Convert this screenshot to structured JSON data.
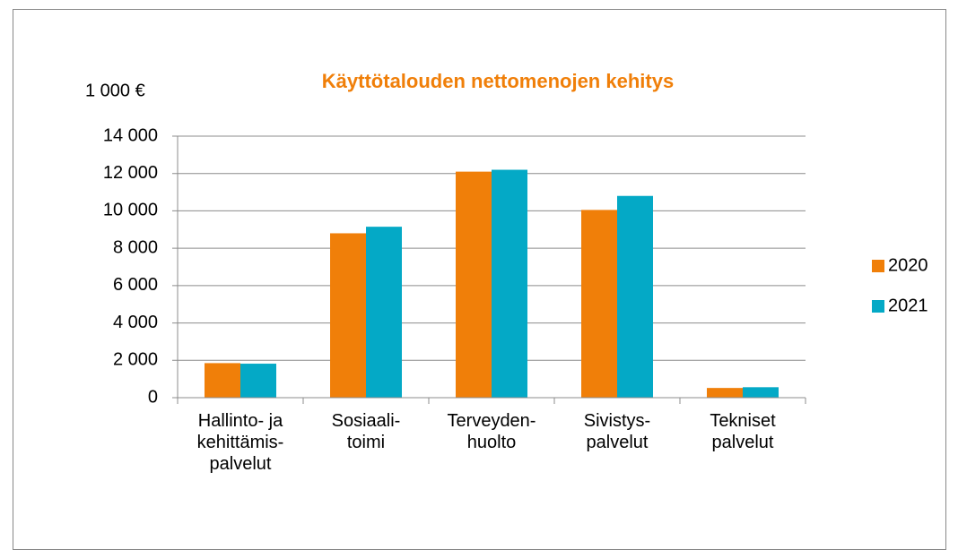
{
  "chart_data": {
    "type": "bar",
    "title": "Käyttötalouden nettomenojen kehitys",
    "y_label": "1 000 €",
    "categories": [
      "Hallinto- ja\nkehittämis-\npalvelut",
      "Sosiaali-\ntoimi",
      "Terveyden-\nhuolto",
      "Sivistys-\npalvelut",
      "Tekniset\npalvelut"
    ],
    "series": [
      {
        "name": "2020",
        "color": "#f07f09",
        "values": [
          1850,
          8800,
          12100,
          10050,
          520
        ]
      },
      {
        "name": "2021",
        "color": "#04a9c6",
        "values": [
          1820,
          9150,
          12200,
          10800,
          560
        ]
      }
    ],
    "ylim": [
      0,
      14000
    ],
    "yticks": [
      0,
      {
        "value": 2000,
        "label": "2 000"
      },
      {
        "value": 4000,
        "label": "4 000"
      },
      {
        "value": 6000,
        "label": "6 000"
      },
      {
        "value": 8000,
        "label": "8 000"
      },
      {
        "value": 10000,
        "label": "10 000"
      },
      {
        "value": 12000,
        "label": "12 000"
      },
      {
        "value": 14000,
        "label": "14 000"
      }
    ],
    "grid": true,
    "legend": "right"
  }
}
